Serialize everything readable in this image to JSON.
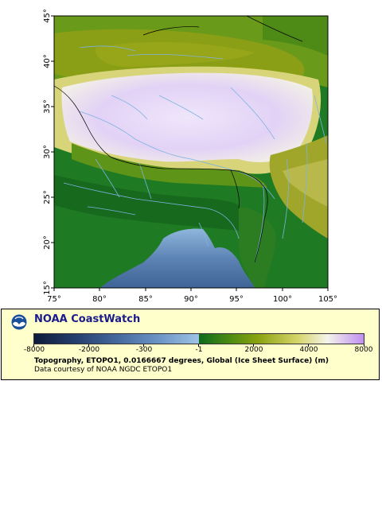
{
  "map": {
    "lat_ticks": [
      "45°",
      "40°",
      "35°",
      "30°",
      "25°",
      "20°",
      "15°"
    ],
    "lon_ticks": [
      "75°",
      "80°",
      "85°",
      "90°",
      "95°",
      "100°",
      "105°"
    ],
    "extent": {
      "lon_min": 75,
      "lon_max": 105,
      "lat_min": 15,
      "lat_max": 45
    },
    "colors": {
      "ocean_deep": "#243e6d",
      "ocean_shallow": "#9ec2e6",
      "lowland": "#0e6a1e",
      "upland": "#8aa310",
      "highland": "#d6d56a",
      "plateau": "#e8dcf8",
      "rivers": "#7fb2e0",
      "borders": "#000000"
    }
  },
  "legend": {
    "brand": "NOAA CoastWatch",
    "colorbar_ticks": [
      "-8000",
      "-2000",
      "-300",
      "-1",
      "2000",
      "4000",
      "8000"
    ],
    "caption": "Topography, ETOPO1, 0.0166667 degrees, Global (Ice Sheet Surface) (m)",
    "credit": "Data courtesy of NOAA NGDC ETOPO1"
  }
}
